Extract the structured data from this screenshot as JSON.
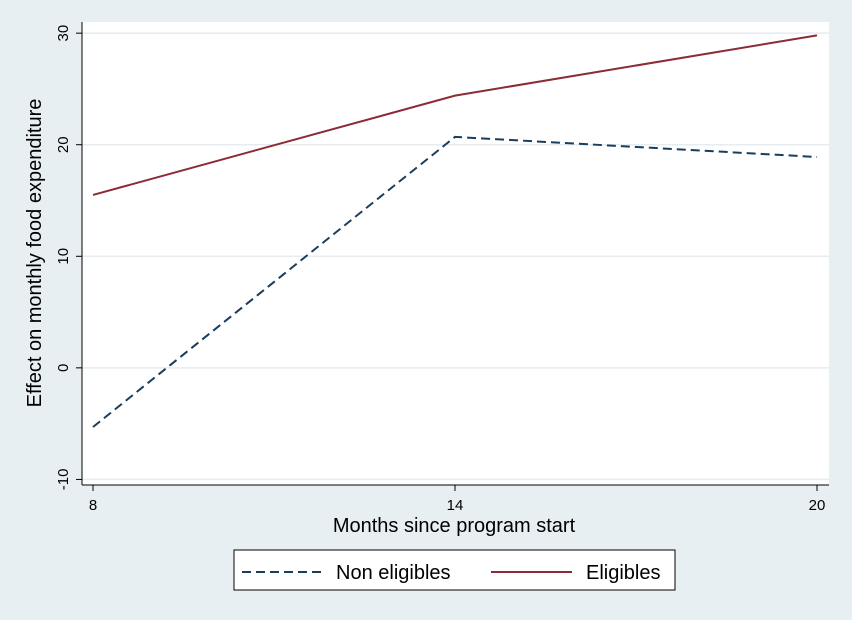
{
  "chart_data": {
    "type": "line",
    "title": "",
    "xlabel": "Months since program start",
    "ylabel": "Effect on monthly food expenditure",
    "x": [
      8,
      14,
      20
    ],
    "xticks": [
      "8",
      "14",
      "20"
    ],
    "xlim": [
      8,
      20
    ],
    "yticks": [
      "-10",
      "0",
      "10",
      "20",
      "30"
    ],
    "ylim": [
      -10.5,
      31
    ],
    "grid": true,
    "legend_placement": "bottom",
    "series": [
      {
        "name": "Non eligibles",
        "values": [
          -5.3,
          20.7,
          18.9
        ],
        "color": "#1a3d5c",
        "dash": "dashed"
      },
      {
        "name": "Eligibles",
        "values": [
          15.5,
          24.4,
          29.8
        ],
        "color": "#8c2b35",
        "dash": "solid"
      }
    ]
  }
}
